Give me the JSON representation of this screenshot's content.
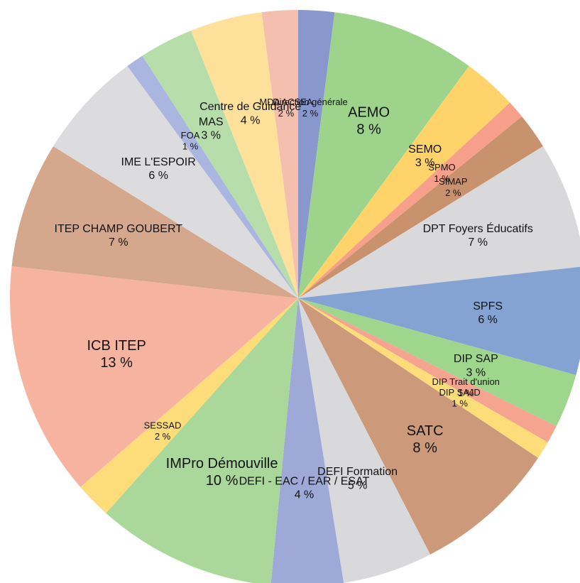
{
  "chart_data": {
    "type": "pie",
    "categories": [
      "Direction générale",
      "AEMO",
      "SEMO",
      "SPMO",
      "SIMAP",
      "DPT Foyers Éducatifs",
      "SPFS",
      "DIP SAP",
      "DIP Trait d'union",
      "DIP SAJD",
      "SATC",
      "DEFI Formation",
      "DEFI - EAC / EAR / ESAT",
      "IMPro Démouville",
      "SESSAD",
      "ICB ITEP",
      "ITEP CHAMP GOUBERT",
      "IME L'ESPOIR",
      "FOA",
      "MAS",
      "Centre de Guidance",
      "MDA ACSEA"
    ],
    "values": [
      2,
      8,
      3,
      1,
      2,
      7,
      6,
      3,
      1,
      1,
      8,
      5,
      4,
      10,
      2,
      13,
      7,
      6,
      1,
      3,
      4,
      2
    ],
    "value_labels": [
      "2 %",
      "8 %",
      "3 %",
      "1 %",
      "2 %",
      "7 %",
      "6 %",
      "3 %",
      "1 %",
      "1 %",
      "8 %",
      "5 %",
      "4 %",
      "10 %",
      "2 %",
      "13 %",
      "7 %",
      "6 %",
      "1 %",
      "3 %",
      "4 %",
      "2 %"
    ],
    "colors": [
      "#8898cc",
      "#9dd38a",
      "#fdd36a",
      "#f6a08b",
      "#c8926e",
      "#d9d9db",
      "#84a3d3",
      "#9fd68e",
      "#f5a48f",
      "#fddc7a",
      "#cc9a7a",
      "#d9d9db",
      "#9ea9d8",
      "#a9d89a",
      "#fddc7a",
      "#f6b3a0",
      "#d5a78c",
      "#dcdcde",
      "#aab6e0",
      "#b6ddaa",
      "#fde09a",
      "#f5bfb0"
    ]
  }
}
